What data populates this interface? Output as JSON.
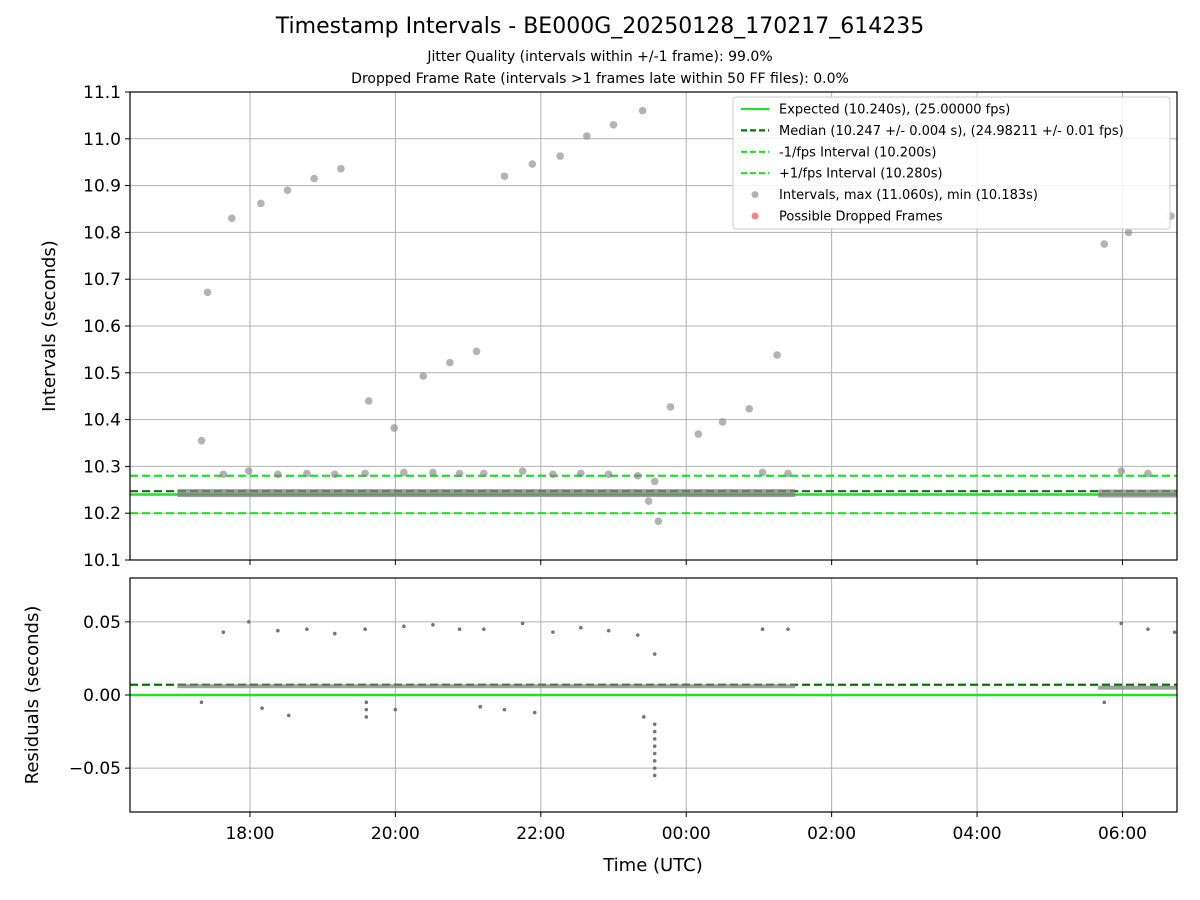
{
  "title": "Timestamp Intervals - BE000G_20250128_170217_614235",
  "subtitle_1": "Jitter Quality (intervals within +/-1 frame): 99.0%",
  "subtitle_2": "Dropped Frame Rate (intervals >1 frames late within 50 FF files): 0.0%",
  "colors": {
    "expected": "#22e022",
    "median": "#007700",
    "fps_band": "#22e022",
    "intervals": "#808080",
    "dropped": "#ee3333",
    "grid": "#b0b0b0"
  },
  "chart_data": [
    {
      "type": "scatter",
      "panel": "top",
      "xlabel": "",
      "ylabel": "Intervals (seconds)",
      "xlim": [
        "16:21",
        "06:45"
      ],
      "ylim": [
        10.1,
        11.1
      ],
      "y_ticks": [
        "10.1",
        "10.2",
        "10.3",
        "10.4",
        "10.5",
        "10.6",
        "10.7",
        "10.8",
        "10.9",
        "11.0",
        "11.1"
      ],
      "grid": true,
      "legend_position": "top-right",
      "legend": [
        {
          "label": "Expected (10.240s), (25.00000 fps)",
          "style": "solid",
          "color": "#22e022"
        },
        {
          "label": "Median (10.247 +/- 0.004 s), (24.98211 +/- 0.01 fps)",
          "style": "dashed",
          "color": "#007700"
        },
        {
          "label": "-1/fps Interval (10.200s)",
          "style": "dashed",
          "color": "#22e022"
        },
        {
          "label": "+1/fps Interval (10.280s)",
          "style": "dashed",
          "color": "#22e022"
        },
        {
          "label": "Intervals, max (11.060s), min (10.183s)",
          "style": "marker",
          "color": "#808080"
        },
        {
          "label": "Possible Dropped Frames",
          "style": "marker",
          "color": "#ee3333"
        }
      ],
      "reference_lines": [
        {
          "name": "expected",
          "y": 10.24
        },
        {
          "name": "median",
          "y": 10.247
        },
        {
          "name": "minus_1_fps",
          "y": 10.2
        },
        {
          "name": "plus_1_fps",
          "y": 10.28
        }
      ],
      "baseline_segments": [
        {
          "x_start": "17:00",
          "x_end": "01:30",
          "y": 10.243
        },
        {
          "x_start": "05:40",
          "x_end": "06:45",
          "y": 10.242
        }
      ],
      "series": [
        {
          "points": [
            {
              "x": "17:20",
              "y": 10.355
            },
            {
              "x": "17:25",
              "y": 10.672
            },
            {
              "x": "17:38",
              "y": 10.283
            },
            {
              "x": "17:45",
              "y": 10.83
            },
            {
              "x": "17:59",
              "y": 10.29
            },
            {
              "x": "18:09",
              "y": 10.862
            },
            {
              "x": "18:23",
              "y": 10.283
            },
            {
              "x": "18:31",
              "y": 10.89
            },
            {
              "x": "18:47",
              "y": 10.285
            },
            {
              "x": "18:53",
              "y": 10.915
            },
            {
              "x": "19:10",
              "y": 10.283
            },
            {
              "x": "19:15",
              "y": 10.936
            },
            {
              "x": "19:35",
              "y": 10.285
            },
            {
              "x": "19:38",
              "y": 10.44
            },
            {
              "x": "19:59",
              "y": 10.382
            },
            {
              "x": "20:07",
              "y": 10.287
            },
            {
              "x": "20:23",
              "y": 10.493
            },
            {
              "x": "20:31",
              "y": 10.287
            },
            {
              "x": "20:45",
              "y": 10.522
            },
            {
              "x": "20:53",
              "y": 10.285
            },
            {
              "x": "21:07",
              "y": 10.546
            },
            {
              "x": "21:13",
              "y": 10.285
            },
            {
              "x": "21:30",
              "y": 10.92
            },
            {
              "x": "21:45",
              "y": 10.29
            },
            {
              "x": "21:53",
              "y": 10.946
            },
            {
              "x": "22:10",
              "y": 10.283
            },
            {
              "x": "22:16",
              "y": 10.963
            },
            {
              "x": "22:33",
              "y": 10.285
            },
            {
              "x": "22:38",
              "y": 11.006
            },
            {
              "x": "22:56",
              "y": 10.283
            },
            {
              "x": "23:00",
              "y": 11.03
            },
            {
              "x": "23:20",
              "y": 10.28
            },
            {
              "x": "23:24",
              "y": 11.06
            },
            {
              "x": "23:29",
              "y": 10.226
            },
            {
              "x": "23:34",
              "y": 10.268
            },
            {
              "x": "23:37",
              "y": 10.183
            },
            {
              "x": "23:47",
              "y": 10.427
            },
            {
              "x": "00:10",
              "y": 10.369
            },
            {
              "x": "00:30",
              "y": 10.395
            },
            {
              "x": "00:52",
              "y": 10.423
            },
            {
              "x": "01:03",
              "y": 10.287
            },
            {
              "x": "01:15",
              "y": 10.538
            },
            {
              "x": "01:24",
              "y": 10.285
            },
            {
              "x": "05:45",
              "y": 10.775
            },
            {
              "x": "05:59",
              "y": 10.29
            },
            {
              "x": "06:05",
              "y": 10.8
            },
            {
              "x": "06:21",
              "y": 10.285
            },
            {
              "x": "06:40",
              "y": 10.835
            }
          ]
        }
      ]
    },
    {
      "type": "scatter",
      "panel": "bottom",
      "xlabel": "Time (UTC)",
      "ylabel": "Residuals (seconds)",
      "xlim": [
        "16:21",
        "06:45"
      ],
      "ylim": [
        -0.08,
        0.08
      ],
      "y_ticks": [
        "0.05",
        "0.00",
        "−0.05"
      ],
      "x_ticks": [
        "18:00",
        "20:00",
        "22:00",
        "00:00",
        "02:00",
        "04:00",
        "06:00"
      ],
      "grid": true,
      "reference_lines": [
        {
          "name": "expected",
          "y": 0.0
        },
        {
          "name": "median",
          "y": 0.007
        }
      ],
      "baseline_segments": [
        {
          "x_start": "17:00",
          "x_end": "01:30",
          "y": 0.006
        },
        {
          "x_start": "05:40",
          "x_end": "06:45",
          "y": 0.005
        }
      ],
      "series": [
        {
          "points": [
            {
              "x": "17:20",
              "y": -0.005
            },
            {
              "x": "17:38",
              "y": 0.043
            },
            {
              "x": "17:59",
              "y": 0.05
            },
            {
              "x": "18:10",
              "y": -0.009
            },
            {
              "x": "18:23",
              "y": 0.044
            },
            {
              "x": "18:32",
              "y": -0.014
            },
            {
              "x": "18:47",
              "y": 0.045
            },
            {
              "x": "19:10",
              "y": 0.042
            },
            {
              "x": "19:35",
              "y": 0.045
            },
            {
              "x": "19:36",
              "y": -0.015
            },
            {
              "x": "19:36",
              "y": -0.01
            },
            {
              "x": "19:36",
              "y": -0.005
            },
            {
              "x": "20:00",
              "y": -0.01
            },
            {
              "x": "20:07",
              "y": 0.047
            },
            {
              "x": "20:31",
              "y": 0.048
            },
            {
              "x": "20:53",
              "y": 0.045
            },
            {
              "x": "21:10",
              "y": -0.008
            },
            {
              "x": "21:13",
              "y": 0.045
            },
            {
              "x": "21:30",
              "y": -0.01
            },
            {
              "x": "21:45",
              "y": 0.049
            },
            {
              "x": "21:55",
              "y": -0.012
            },
            {
              "x": "22:10",
              "y": 0.043
            },
            {
              "x": "22:33",
              "y": 0.046
            },
            {
              "x": "22:56",
              "y": 0.044
            },
            {
              "x": "23:20",
              "y": 0.041
            },
            {
              "x": "23:25",
              "y": -0.015
            },
            {
              "x": "23:34",
              "y": 0.028
            },
            {
              "x": "23:34",
              "y": -0.02
            },
            {
              "x": "23:34",
              "y": -0.025
            },
            {
              "x": "23:34",
              "y": -0.03
            },
            {
              "x": "23:34",
              "y": -0.035
            },
            {
              "x": "23:34",
              "y": -0.04
            },
            {
              "x": "23:34",
              "y": -0.045
            },
            {
              "x": "23:34",
              "y": -0.05
            },
            {
              "x": "23:34",
              "y": -0.055
            },
            {
              "x": "01:03",
              "y": 0.045
            },
            {
              "x": "01:24",
              "y": 0.045
            },
            {
              "x": "05:45",
              "y": -0.005
            },
            {
              "x": "05:59",
              "y": 0.049
            },
            {
              "x": "06:21",
              "y": 0.045
            },
            {
              "x": "06:43",
              "y": 0.043
            }
          ]
        }
      ]
    }
  ]
}
